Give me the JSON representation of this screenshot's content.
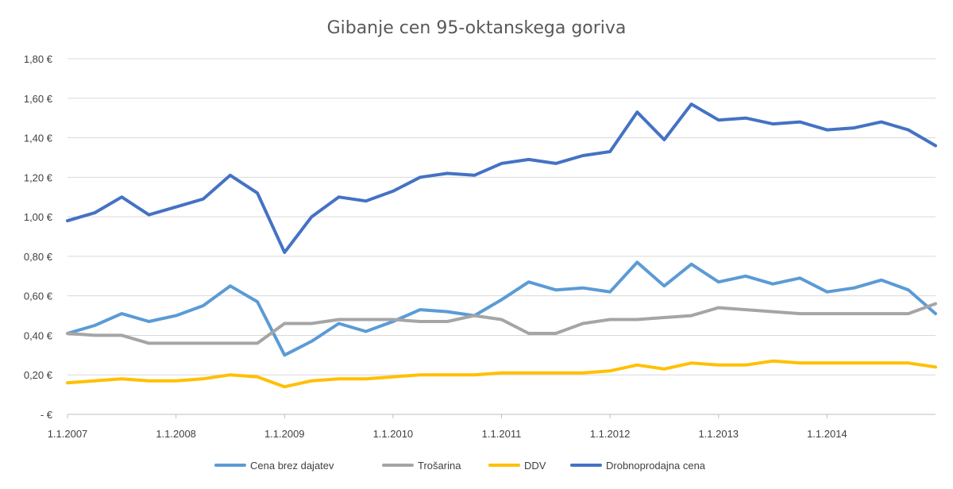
{
  "chart_data": {
    "type": "line",
    "title": "Gibanje cen 95-oktanskega goriva",
    "xlabel": "",
    "ylabel": "",
    "x_ticks": [
      "1.1.2007",
      "1.1.2008",
      "1.1.2009",
      "1.1.2010",
      "1.1.2011",
      "1.1.2012",
      "1.1.2013",
      "1.1.2014"
    ],
    "y_ticks": [
      "-  €",
      "0,20 €",
      "0,40 €",
      "0,60 €",
      "0,80 €",
      "1,00 €",
      "1,20 €",
      "1,40 €",
      "1,60 €",
      "1,80 €"
    ],
    "ylim": [
      0,
      1.8
    ],
    "xlim": [
      2007.0,
      2015.0
    ],
    "grid": true,
    "legend_position": "bottom",
    "x": [
      2007.0,
      2007.25,
      2007.5,
      2007.75,
      2008.0,
      2008.25,
      2008.5,
      2008.75,
      2009.0,
      2009.25,
      2009.5,
      2009.75,
      2010.0,
      2010.25,
      2010.5,
      2010.75,
      2011.0,
      2011.25,
      2011.5,
      2011.75,
      2012.0,
      2012.25,
      2012.5,
      2012.75,
      2013.0,
      2013.25,
      2013.5,
      2013.75,
      2014.0,
      2014.25,
      2014.5,
      2014.75,
      2015.0
    ],
    "series": [
      {
        "name": "Cena brez dajatev",
        "color": "#5b9bd5",
        "values": [
          0.41,
          0.45,
          0.51,
          0.47,
          0.5,
          0.55,
          0.65,
          0.57,
          0.3,
          0.37,
          0.46,
          0.42,
          0.47,
          0.53,
          0.52,
          0.5,
          0.58,
          0.67,
          0.63,
          0.64,
          0.62,
          0.77,
          0.65,
          0.76,
          0.67,
          0.7,
          0.66,
          0.69,
          0.62,
          0.64,
          0.68,
          0.63,
          0.51
        ]
      },
      {
        "name": "Trošarina",
        "color": "#a5a5a5",
        "values": [
          0.41,
          0.4,
          0.4,
          0.36,
          0.36,
          0.36,
          0.36,
          0.36,
          0.46,
          0.46,
          0.48,
          0.48,
          0.48,
          0.47,
          0.47,
          0.5,
          0.48,
          0.41,
          0.41,
          0.46,
          0.48,
          0.48,
          0.49,
          0.5,
          0.54,
          0.53,
          0.52,
          0.51,
          0.51,
          0.51,
          0.51,
          0.51,
          0.56
        ]
      },
      {
        "name": "DDV",
        "color": "#ffc000",
        "values": [
          0.16,
          0.17,
          0.18,
          0.17,
          0.17,
          0.18,
          0.2,
          0.19,
          0.14,
          0.17,
          0.18,
          0.18,
          0.19,
          0.2,
          0.2,
          0.2,
          0.21,
          0.21,
          0.21,
          0.21,
          0.22,
          0.25,
          0.23,
          0.26,
          0.25,
          0.25,
          0.27,
          0.26,
          0.26,
          0.26,
          0.26,
          0.26,
          0.24
        ]
      },
      {
        "name": "Drobnoprodajna cena",
        "color": "#4472c4",
        "values": [
          0.98,
          1.02,
          1.1,
          1.01,
          1.05,
          1.09,
          1.21,
          1.12,
          0.82,
          1.0,
          1.1,
          1.08,
          1.13,
          1.2,
          1.22,
          1.21,
          1.27,
          1.29,
          1.27,
          1.31,
          1.33,
          1.53,
          1.39,
          1.57,
          1.49,
          1.5,
          1.47,
          1.48,
          1.44,
          1.45,
          1.48,
          1.44,
          1.36
        ]
      }
    ]
  }
}
